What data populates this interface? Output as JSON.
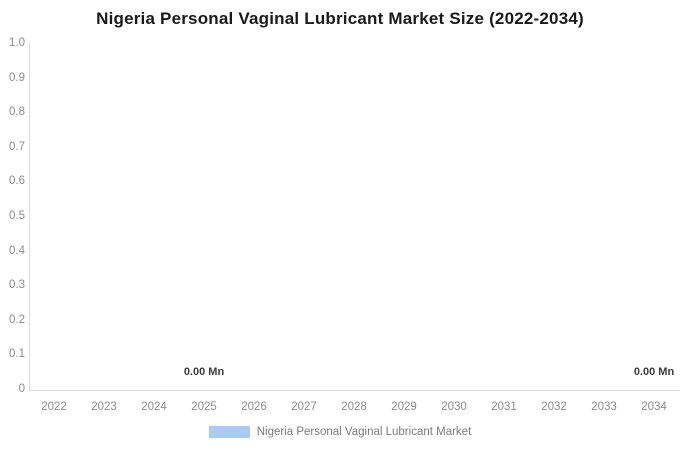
{
  "chart_data": {
    "type": "bar",
    "title": "Nigeria Personal Vaginal Lubricant Market Size (2022-2034)",
    "categories": [
      "2022",
      "2023",
      "2024",
      "2025",
      "2026",
      "2027",
      "2028",
      "2029",
      "2030",
      "2031",
      "2032",
      "2033",
      "2034"
    ],
    "series": [
      {
        "name": "Nigeria Personal Vaginal Lubricant Market",
        "values": [
          0,
          0,
          0,
          0,
          0,
          0,
          0,
          0,
          0,
          0,
          0,
          0,
          0
        ],
        "color": "#a9cbf2"
      }
    ],
    "unit": "Mn",
    "visible_data_labels": [
      {
        "category": "2025",
        "text": "0.00 Mn"
      },
      {
        "category": "2034",
        "text": "0.00 Mn"
      }
    ],
    "xlabel": "",
    "ylabel": "",
    "ylim": [
      0,
      1.0
    ],
    "y_ticks": [
      "1.0",
      "0.9",
      "0.8",
      "0.7",
      "0.6",
      "0.5",
      "0.4",
      "0.3",
      "0.2",
      "0.1",
      "0"
    ],
    "grid": false,
    "legend_position": "bottom"
  },
  "colors": {
    "title_text": "#1a1a1a",
    "axis_line": "#dcdcdc",
    "tick_text": "#8c8c8c",
    "data_label_text": "#3b3b3b",
    "legend_text": "#7b7b7b",
    "series_swatch": "#a9cbf2",
    "background": "#ffffff"
  }
}
